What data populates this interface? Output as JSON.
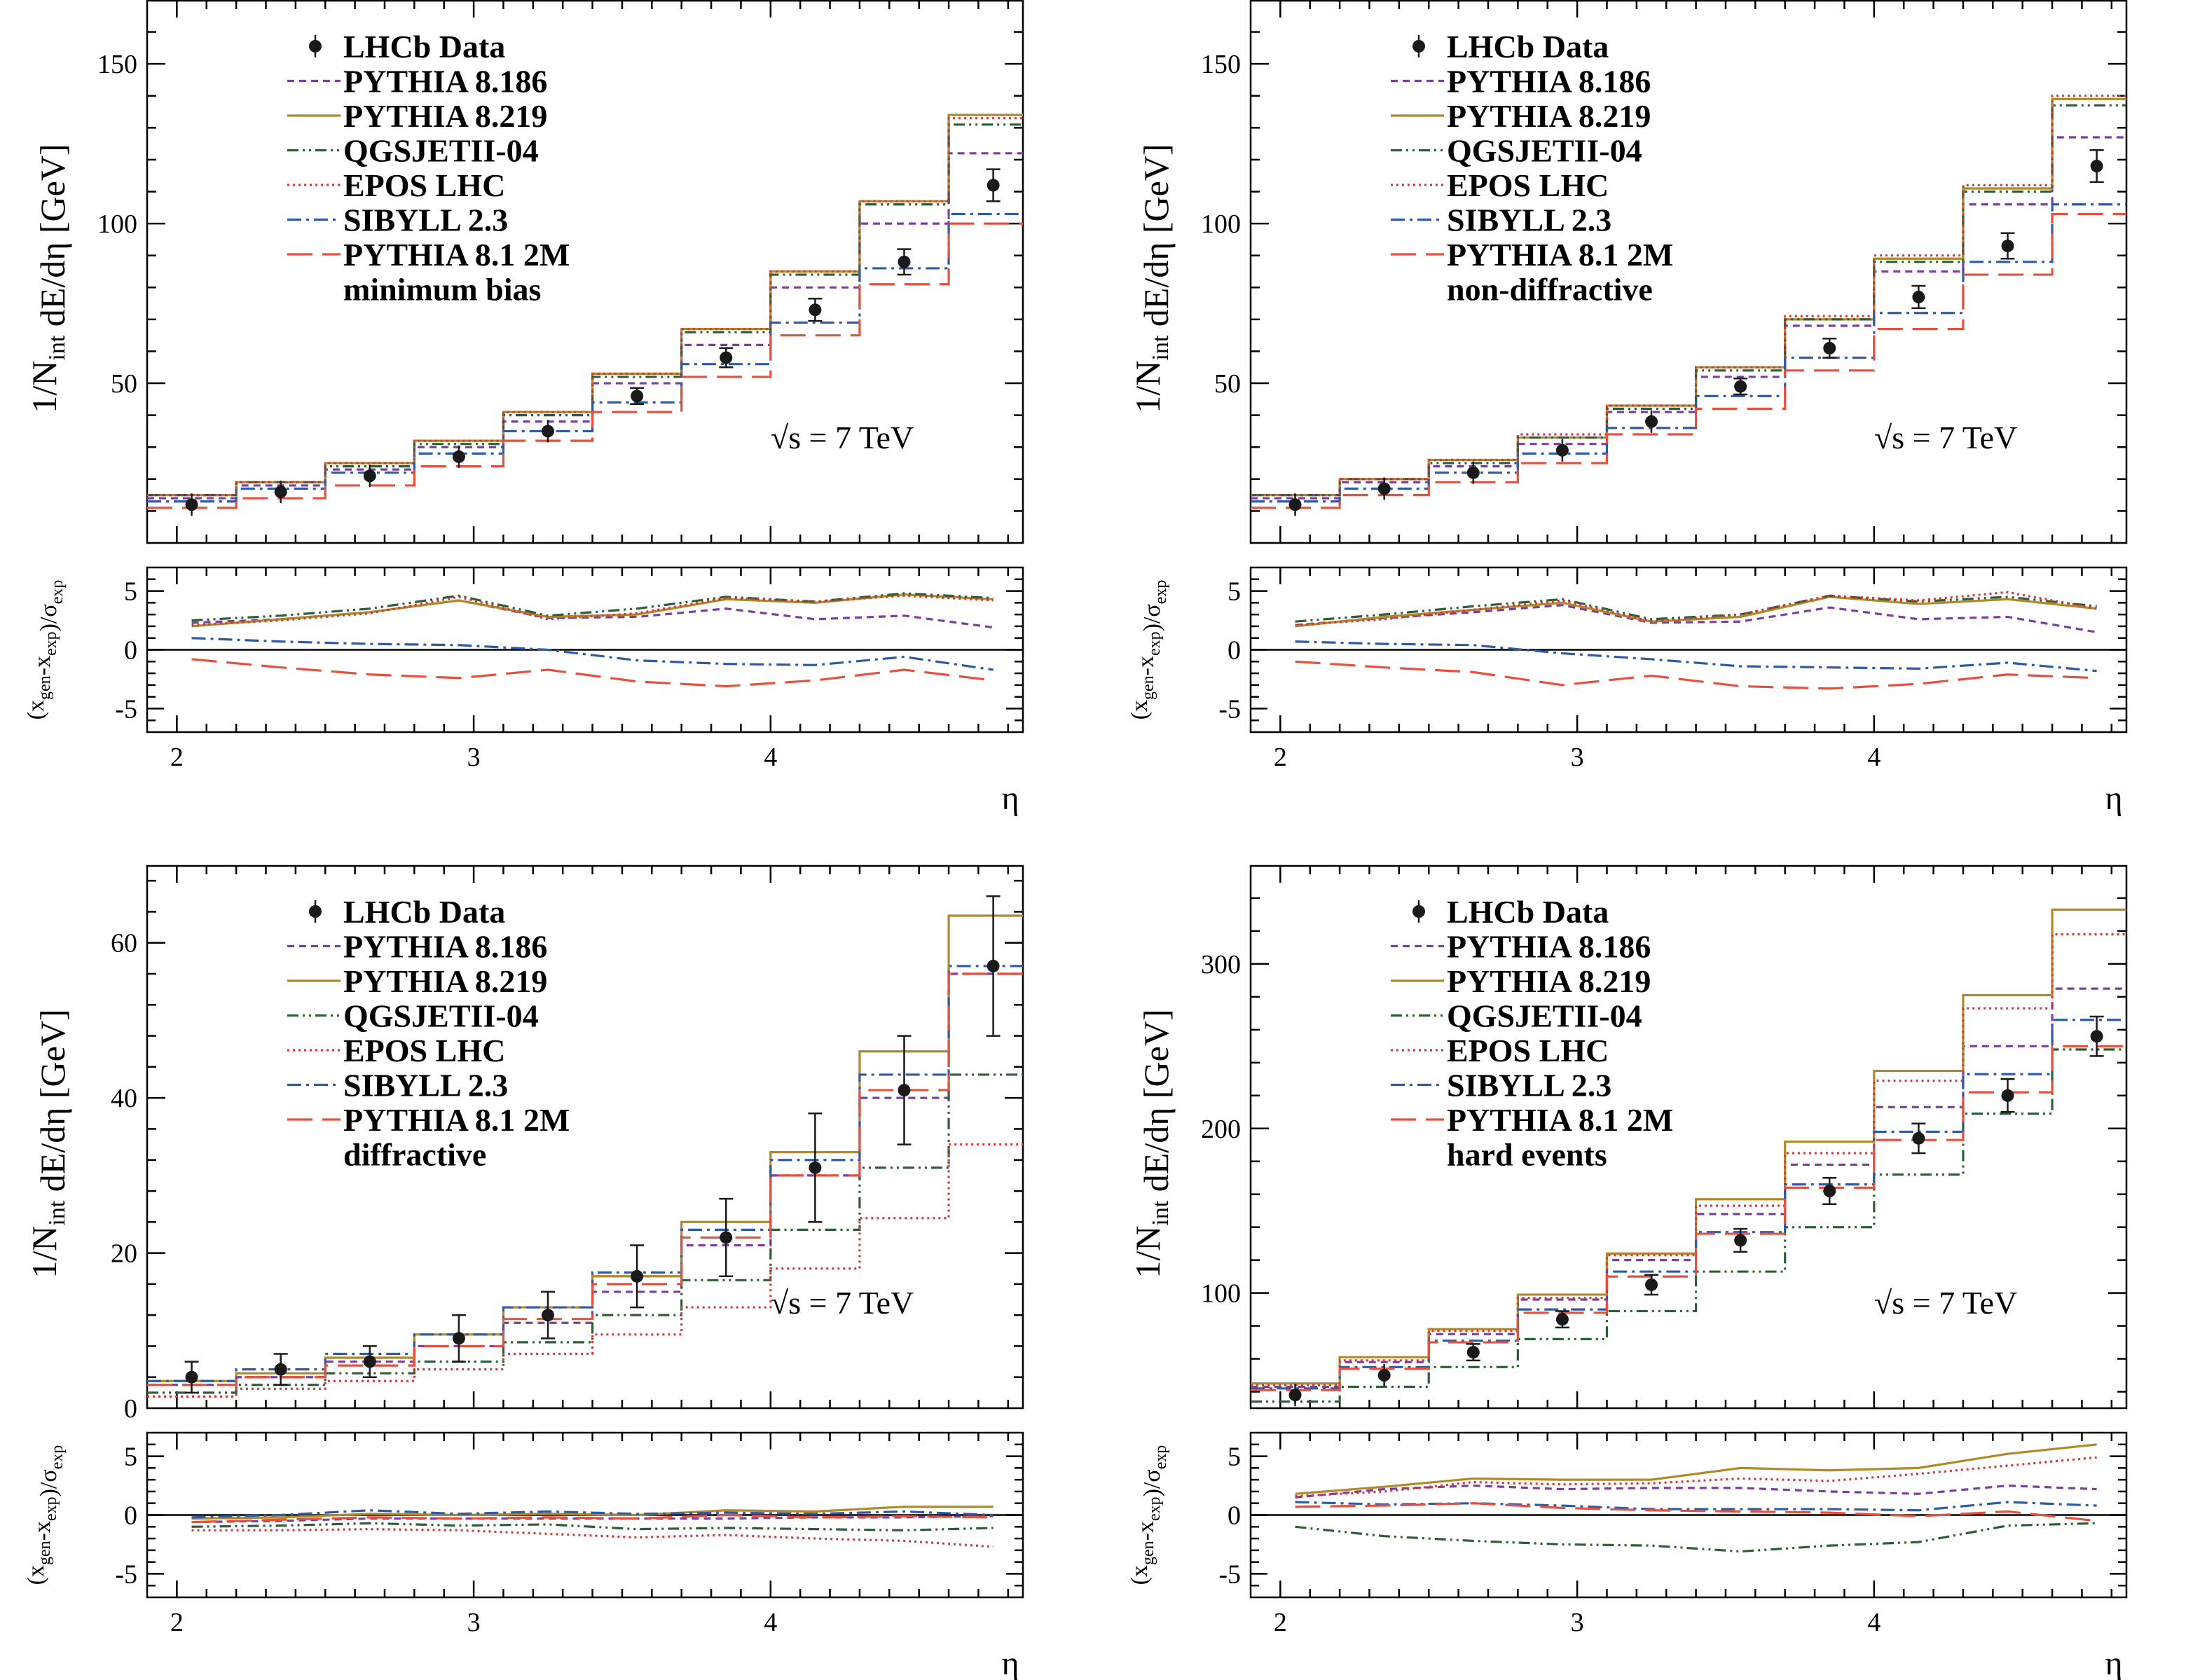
{
  "colors": {
    "LHCb Data": "#1a1a1a",
    "PYTHIA 8.186": "#7b3fa0",
    "PYTHIA 8.219": "#b08a28",
    "QGSJETII-04": "#2e5e35",
    "EPOS LHC": "#d43a3a",
    "SIBYLL 2.3": "#2f5aa8",
    "PYTHIA 8.1 2M": "#e8503c"
  },
  "dash": {
    "PYTHIA 8.186": "10,7",
    "PYTHIA 8.219": "",
    "QGSJETII-04": "16,6,3,6,3,6",
    "EPOS LHC": "3,5",
    "SIBYLL 2.3": "20,7,4,7",
    "PYTHIA 8.1 2M": "36,14"
  },
  "legend_entries": [
    "LHCb Data",
    "PYTHIA 8.186",
    "PYTHIA 8.219",
    "QGSJETII-04",
    "EPOS LHC",
    "SIBYLL 2.3",
    "PYTHIA 8.1 2M"
  ],
  "energy_label": "√s = 7 TeV",
  "chart_data": [
    {
      "type": "line",
      "category": "minimum bias",
      "xlabel": "η",
      "ylabel": "1/N_int dE/dη [GeV]",
      "ratio_ylabel": "(x_gen-x_exp)/σ_exp",
      "xlim": [
        1.9,
        4.85
      ],
      "ylim": [
        0,
        170
      ],
      "yticks": [
        50,
        100,
        150
      ],
      "ratio_ylim": [
        -7,
        7
      ],
      "ratio_yticks": [
        -5,
        0,
        5
      ],
      "xticks": [
        2,
        3,
        4
      ],
      "bin_edges": [
        1.9,
        2.2,
        2.5,
        2.8,
        3.1,
        3.4,
        3.7,
        4.0,
        4.3,
        4.6,
        4.85
      ],
      "x": [
        2.05,
        2.35,
        2.65,
        2.95,
        3.25,
        3.55,
        3.85,
        4.15,
        4.45,
        4.75
      ],
      "data": {
        "name": "LHCb Data",
        "values": [
          12,
          16,
          21,
          27,
          35,
          46,
          58,
          73,
          88,
          112
        ],
        "errors": [
          1,
          1.2,
          1.5,
          1.8,
          2,
          2.5,
          3,
          3.5,
          4,
          5
        ]
      },
      "series": [
        {
          "name": "PYTHIA 8.186",
          "values": [
            14,
            18,
            23,
            30,
            38,
            50,
            62,
            80,
            100,
            122
          ]
        },
        {
          "name": "PYTHIA 8.219",
          "values": [
            15,
            19,
            25,
            32,
            41,
            53,
            67,
            85,
            107,
            134
          ]
        },
        {
          "name": "QGSJETII-04",
          "values": [
            15,
            19,
            24,
            31,
            40,
            52,
            66,
            84,
            106,
            131
          ]
        },
        {
          "name": "EPOS LHC",
          "values": [
            15,
            19,
            25,
            32,
            41,
            53,
            67,
            85,
            107,
            133
          ]
        },
        {
          "name": "SIBYLL 2.3",
          "values": [
            13,
            17,
            22,
            28,
            35,
            44,
            56,
            69,
            86,
            103
          ]
        },
        {
          "name": "PYTHIA 8.1 2M",
          "values": [
            11,
            14,
            18,
            24,
            32,
            41,
            52,
            65,
            81,
            100
          ]
        }
      ],
      "ratio_series": [
        {
          "name": "PYTHIA 8.186",
          "values": [
            2.3,
            2.6,
            3.2,
            4.2,
            2.7,
            2.8,
            3.5,
            2.6,
            2.9,
            1.9
          ]
        },
        {
          "name": "PYTHIA 8.219",
          "values": [
            2.0,
            2.6,
            3.2,
            4.2,
            2.8,
            3.0,
            4.3,
            4.0,
            4.7,
            4.3
          ]
        },
        {
          "name": "QGSJETII-04",
          "values": [
            2.5,
            2.9,
            3.5,
            4.6,
            2.9,
            3.5,
            4.5,
            4.1,
            4.8,
            4.4
          ]
        },
        {
          "name": "EPOS LHC",
          "values": [
            2.1,
            2.5,
            3.1,
            4.5,
            2.6,
            3.1,
            4.4,
            4.1,
            4.6,
            4.2
          ]
        },
        {
          "name": "SIBYLL 2.3",
          "values": [
            1.0,
            0.7,
            0.5,
            0.4,
            0.0,
            -0.9,
            -1.2,
            -1.3,
            -0.6,
            -1.7
          ]
        },
        {
          "name": "PYTHIA 8.1 2M",
          "values": [
            -0.8,
            -1.5,
            -2.1,
            -2.4,
            -1.7,
            -2.7,
            -3.1,
            -2.6,
            -1.7,
            -2.6
          ]
        }
      ]
    },
    {
      "type": "line",
      "category": "non-diffractive",
      "xlabel": "η",
      "ylabel": "1/N_int dE/dη [GeV]",
      "ratio_ylabel": "(x_gen-x_exp)/σ_exp",
      "xlim": [
        1.9,
        4.85
      ],
      "ylim": [
        0,
        170
      ],
      "yticks": [
        50,
        100,
        150
      ],
      "ratio_ylim": [
        -7,
        7
      ],
      "ratio_yticks": [
        -5,
        0,
        5
      ],
      "xticks": [
        2,
        3,
        4
      ],
      "bin_edges": [
        1.9,
        2.2,
        2.5,
        2.8,
        3.1,
        3.4,
        3.7,
        4.0,
        4.3,
        4.6,
        4.85
      ],
      "x": [
        2.05,
        2.35,
        2.65,
        2.95,
        3.25,
        3.55,
        3.85,
        4.15,
        4.45,
        4.75
      ],
      "data": {
        "name": "LHCb Data",
        "values": [
          12,
          17,
          22,
          29,
          38,
          49,
          61,
          77,
          93,
          118
        ],
        "errors": [
          1,
          1.2,
          1.5,
          1.8,
          2,
          2.5,
          3,
          3.5,
          4,
          5
        ]
      },
      "series": [
        {
          "name": "PYTHIA 8.186",
          "values": [
            14,
            19,
            24,
            31,
            41,
            52,
            68,
            85,
            106,
            127
          ]
        },
        {
          "name": "PYTHIA 8.219",
          "values": [
            15,
            20,
            26,
            33,
            43,
            55,
            70,
            89,
            111,
            139
          ]
        },
        {
          "name": "QGSJETII-04",
          "values": [
            15,
            20,
            25,
            33,
            42,
            54,
            70,
            88,
            110,
            137
          ]
        },
        {
          "name": "EPOS LHC",
          "values": [
            15,
            20,
            26,
            34,
            43,
            55,
            71,
            90,
            112,
            140
          ]
        },
        {
          "name": "SIBYLL 2.3",
          "values": [
            13,
            17,
            22,
            28,
            36,
            46,
            58,
            72,
            88,
            106
          ]
        },
        {
          "name": "PYTHIA 8.1 2M",
          "values": [
            11,
            15,
            19,
            25,
            34,
            42,
            54,
            67,
            84,
            103
          ]
        }
      ],
      "ratio_series": [
        {
          "name": "PYTHIA 8.186",
          "values": [
            2.1,
            2.7,
            3.2,
            3.8,
            2.3,
            2.4,
            3.6,
            2.6,
            2.8,
            1.5
          ]
        },
        {
          "name": "PYTHIA 8.219",
          "values": [
            2.0,
            2.8,
            3.4,
            4.0,
            2.4,
            2.8,
            4.5,
            3.9,
            4.3,
            3.5
          ]
        },
        {
          "name": "QGSJETII-04",
          "values": [
            2.4,
            3.0,
            3.7,
            4.3,
            2.6,
            3.0,
            4.6,
            4.1,
            4.5,
            3.7
          ]
        },
        {
          "name": "EPOS LHC",
          "values": [
            2.1,
            2.6,
            3.4,
            4.2,
            2.4,
            3.0,
            4.6,
            4.2,
            4.9,
            3.5
          ]
        },
        {
          "name": "SIBYLL 2.3",
          "values": [
            0.7,
            0.5,
            0.4,
            -0.3,
            -0.8,
            -1.4,
            -1.5,
            -1.6,
            -1.1,
            -1.8
          ]
        },
        {
          "name": "PYTHIA 8.1 2M",
          "values": [
            -1.0,
            -1.5,
            -1.9,
            -3.0,
            -2.2,
            -3.1,
            -3.3,
            -2.9,
            -2.1,
            -2.4
          ]
        }
      ]
    },
    {
      "type": "line",
      "category": "diffractive",
      "xlabel": "η",
      "ylabel": "1/N_int dE/dη [GeV]",
      "ratio_ylabel": "(x_gen-x_exp)/σ_exp",
      "xlim": [
        1.9,
        4.85
      ],
      "ylim": [
        0,
        70
      ],
      "yticks": [
        0,
        20,
        40,
        60
      ],
      "ratio_ylim": [
        -7,
        7
      ],
      "ratio_yticks": [
        -5,
        0,
        5
      ],
      "xticks": [
        2,
        3,
        4
      ],
      "bin_edges": [
        1.9,
        2.2,
        2.5,
        2.8,
        3.1,
        3.4,
        3.7,
        4.0,
        4.3,
        4.6,
        4.85
      ],
      "x": [
        2.05,
        2.35,
        2.65,
        2.95,
        3.25,
        3.55,
        3.85,
        4.15,
        4.45,
        4.75
      ],
      "data": {
        "name": "LHCb Data",
        "values": [
          4,
          5,
          6,
          9,
          12,
          17,
          22,
          31,
          41,
          57
        ],
        "errors": [
          2,
          2,
          2,
          3,
          3,
          4,
          5,
          7,
          7,
          9
        ]
      },
      "series": [
        {
          "name": "PYTHIA 8.186",
          "values": [
            3,
            4,
            6,
            8,
            11,
            15,
            21,
            30,
            40,
            56
          ]
        },
        {
          "name": "PYTHIA 8.219",
          "values": [
            3.5,
            4.5,
            6.5,
            9.5,
            13,
            17,
            24,
            33,
            46,
            63.5
          ]
        },
        {
          "name": "QGSJETII-04",
          "values": [
            2,
            3,
            4.5,
            6,
            8.5,
            12,
            16.5,
            23,
            31,
            43
          ]
        },
        {
          "name": "EPOS LHC",
          "values": [
            1.5,
            2.5,
            3.5,
            5,
            7,
            9.5,
            13,
            18,
            24.5,
            34
          ]
        },
        {
          "name": "SIBYLL 2.3",
          "values": [
            3.5,
            5,
            7,
            9.5,
            13,
            17.5,
            23,
            32,
            43,
            57
          ]
        },
        {
          "name": "PYTHIA 8.1 2M",
          "values": [
            3,
            4,
            5.5,
            8,
            11.5,
            16,
            22,
            30,
            41,
            56
          ]
        }
      ],
      "ratio_series": [
        {
          "name": "PYTHIA 8.186",
          "values": [
            -0.6,
            -0.5,
            -0.3,
            -0.3,
            -0.3,
            -0.3,
            -0.3,
            -0.2,
            -0.2,
            -0.1
          ]
        },
        {
          "name": "PYTHIA 8.219",
          "values": [
            -0.3,
            -0.2,
            0.1,
            0.0,
            0.1,
            0.0,
            0.4,
            0.3,
            0.7,
            0.7
          ]
        },
        {
          "name": "QGSJETII-04",
          "values": [
            -1.0,
            -0.9,
            -0.7,
            -0.9,
            -0.8,
            -1.2,
            -1.1,
            -1.2,
            -1.3,
            -1.1
          ]
        },
        {
          "name": "EPOS LHC",
          "values": [
            -1.3,
            -1.3,
            -1.2,
            -1.3,
            -1.6,
            -1.9,
            -1.7,
            -2.0,
            -2.2,
            -2.7
          ]
        },
        {
          "name": "SIBYLL 2.3",
          "values": [
            -0.2,
            0.0,
            0.4,
            0.1,
            0.3,
            0.1,
            0.2,
            0.1,
            0.3,
            0.0
          ]
        },
        {
          "name": "PYTHIA 8.1 2M",
          "values": [
            -0.6,
            -0.4,
            -0.2,
            -0.3,
            -0.2,
            -0.3,
            0.0,
            -0.2,
            -0.1,
            -0.2
          ]
        }
      ]
    },
    {
      "type": "line",
      "category": "hard events",
      "xlabel": "η",
      "ylabel": "1/N_int dE/dη [GeV]",
      "ratio_ylabel": "(x_gen-x_exp)/σ_exp",
      "xlim": [
        1.9,
        4.85
      ],
      "ylim": [
        30,
        360
      ],
      "yticks": [
        100,
        200,
        300
      ],
      "ratio_ylim": [
        -7,
        7
      ],
      "ratio_yticks": [
        -5,
        0,
        5
      ],
      "xticks": [
        2,
        3,
        4
      ],
      "bin_edges": [
        1.9,
        2.2,
        2.5,
        2.8,
        3.1,
        3.4,
        3.7,
        4.0,
        4.3,
        4.6,
        4.85
      ],
      "x": [
        2.05,
        2.35,
        2.65,
        2.95,
        3.25,
        3.55,
        3.85,
        4.15,
        4.45,
        4.75
      ],
      "data": {
        "name": "LHCb Data",
        "values": [
          38,
          50,
          64,
          84,
          105,
          132,
          162,
          194,
          220,
          256
        ],
        "errors": [
          4,
          4,
          5,
          5,
          6,
          7,
          8,
          9,
          10,
          12
        ]
      },
      "series": [
        {
          "name": "PYTHIA 8.186",
          "values": [
            43,
            58,
            75,
            96,
            120,
            148,
            178,
            213,
            250,
            285
          ]
        },
        {
          "name": "PYTHIA 8.219",
          "values": [
            45,
            61,
            78,
            99,
            124,
            157,
            192,
            235,
            281,
            333
          ]
        },
        {
          "name": "QGSJETII-04",
          "values": [
            34,
            43,
            55,
            72,
            89,
            113,
            140,
            172,
            209,
            248
          ]
        },
        {
          "name": "EPOS LHC",
          "values": [
            44,
            59,
            77,
            97,
            123,
            153,
            185,
            229,
            273,
            318
          ]
        },
        {
          "name": "SIBYLL 2.3",
          "values": [
            42,
            55,
            71,
            90,
            113,
            137,
            166,
            198,
            233,
            266
          ]
        },
        {
          "name": "PYTHIA 8.1 2M",
          "values": [
            41,
            54,
            70,
            88,
            110,
            136,
            164,
            193,
            222,
            250
          ]
        }
      ],
      "ratio_series": [
        {
          "name": "PYTHIA 8.186",
          "values": [
            1.5,
            2.2,
            2.5,
            2.2,
            2.3,
            2.3,
            2.0,
            1.8,
            2.5,
            2.2
          ]
        },
        {
          "name": "PYTHIA 8.219",
          "values": [
            1.8,
            2.4,
            3.1,
            3.0,
            3.0,
            4.0,
            3.8,
            4.0,
            5.2,
            6.0
          ]
        },
        {
          "name": "QGSJETII-04",
          "values": [
            -1.0,
            -1.8,
            -2.2,
            -2.5,
            -2.6,
            -3.1,
            -2.6,
            -2.3,
            -0.9,
            -0.7
          ]
        },
        {
          "name": "EPOS LHC",
          "values": [
            1.6,
            2.0,
            2.8,
            2.6,
            2.7,
            3.1,
            2.9,
            3.5,
            4.2,
            4.9
          ]
        },
        {
          "name": "SIBYLL 2.3",
          "values": [
            1.1,
            0.9,
            1.0,
            0.8,
            0.5,
            0.5,
            0.5,
            0.4,
            1.1,
            0.8
          ]
        },
        {
          "name": "PYTHIA 8.1 2M",
          "values": [
            0.7,
            0.8,
            1.0,
            0.6,
            0.4,
            0.3,
            0.2,
            -0.1,
            0.3,
            -0.5
          ]
        }
      ]
    }
  ]
}
